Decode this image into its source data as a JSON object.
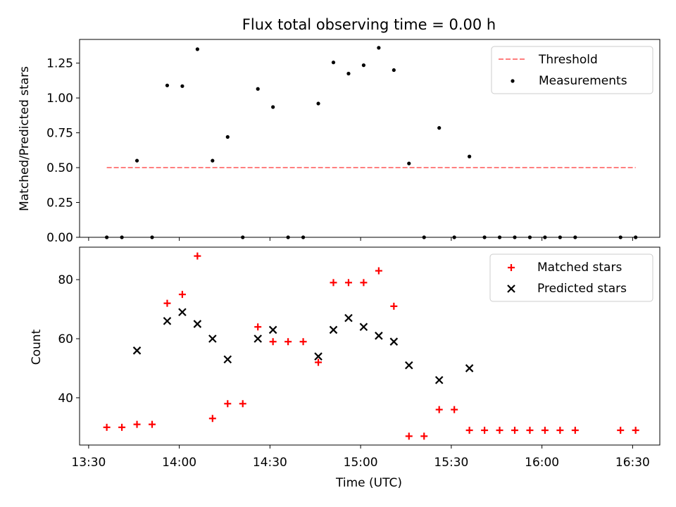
{
  "chart_data": [
    {
      "type": "scatter",
      "title": "Flux total observing time = 0.00 h",
      "xlabel": "",
      "ylabel": "Matched/Predicted stars",
      "xlim": [
        "13:27",
        "16:39"
      ],
      "ylim": [
        0,
        1.42
      ],
      "yticks": [
        "0.00",
        "0.25",
        "0.50",
        "0.75",
        "1.00",
        "1.25"
      ],
      "grid": false,
      "legend_position": "top-right",
      "threshold": {
        "name": "Threshold",
        "y": 0.5,
        "x_range": [
          "13:36",
          "16:31"
        ],
        "color": "#ff7f7f",
        "style": "dashed"
      },
      "series": [
        {
          "name": "Measurements",
          "color": "#000000",
          "marker": "dot",
          "x": [
            "13:36",
            "13:41",
            "13:46",
            "13:51",
            "13:56",
            "14:01",
            "14:06",
            "14:11",
            "14:16",
            "14:21",
            "14:26",
            "14:31",
            "14:36",
            "14:41",
            "14:46",
            "14:51",
            "14:56",
            "15:01",
            "15:06",
            "15:11",
            "15:16",
            "15:21",
            "15:26",
            "15:31",
            "15:36",
            "15:41",
            "15:46",
            "15:51",
            "15:56",
            "16:01",
            "16:06",
            "16:11",
            "16:26",
            "16:31"
          ],
          "y": [
            0,
            0,
            0.55,
            0,
            1.09,
            1.085,
            1.35,
            0.55,
            0.72,
            0,
            1.065,
            0.935,
            0,
            0,
            0.96,
            1.255,
            1.175,
            1.235,
            1.36,
            1.2,
            0.53,
            0,
            0.785,
            0,
            0.58,
            0,
            0,
            0,
            0,
            0,
            0,
            0,
            0,
            0
          ]
        }
      ]
    },
    {
      "type": "scatter",
      "title": "",
      "xlabel": "Time (UTC)",
      "ylabel": "Count",
      "xlim": [
        "13:27",
        "16:39"
      ],
      "xticks": [
        "13:30",
        "14:00",
        "14:30",
        "15:00",
        "15:30",
        "16:00",
        "16:30"
      ],
      "ylim": [
        24,
        91
      ],
      "yticks": [
        "40",
        "60",
        "80"
      ],
      "grid": false,
      "legend_position": "top-right",
      "series": [
        {
          "name": "Matched stars",
          "color": "#ff0000",
          "marker": "plus",
          "x": [
            "13:36",
            "13:41",
            "13:46",
            "13:51",
            "13:56",
            "14:01",
            "14:06",
            "14:11",
            "14:16",
            "14:21",
            "14:26",
            "14:31",
            "14:36",
            "14:41",
            "14:46",
            "14:51",
            "14:56",
            "15:01",
            "15:06",
            "15:11",
            "15:16",
            "15:21",
            "15:26",
            "15:31",
            "15:36",
            "15:41",
            "15:46",
            "15:51",
            "15:56",
            "16:01",
            "16:06",
            "16:11",
            "16:26",
            "16:31"
          ],
          "y": [
            30,
            30,
            31,
            31,
            72,
            75,
            88,
            33,
            38,
            38,
            64,
            59,
            59,
            59,
            52,
            79,
            79,
            79,
            83,
            71,
            27,
            27,
            36,
            36,
            29,
            29,
            29,
            29,
            29,
            29,
            29,
            29,
            29,
            29
          ]
        },
        {
          "name": "Predicted stars",
          "color": "#000000",
          "marker": "x",
          "x": [
            "13:46",
            "13:56",
            "14:01",
            "14:06",
            "14:11",
            "14:16",
            "14:26",
            "14:31",
            "14:46",
            "14:51",
            "14:56",
            "15:01",
            "15:06",
            "15:11",
            "15:16",
            "15:26",
            "15:36"
          ],
          "y": [
            56,
            66,
            69,
            65,
            60,
            53,
            60,
            63,
            54,
            63,
            67,
            64,
            61,
            59,
            51,
            46,
            50
          ]
        }
      ]
    }
  ]
}
